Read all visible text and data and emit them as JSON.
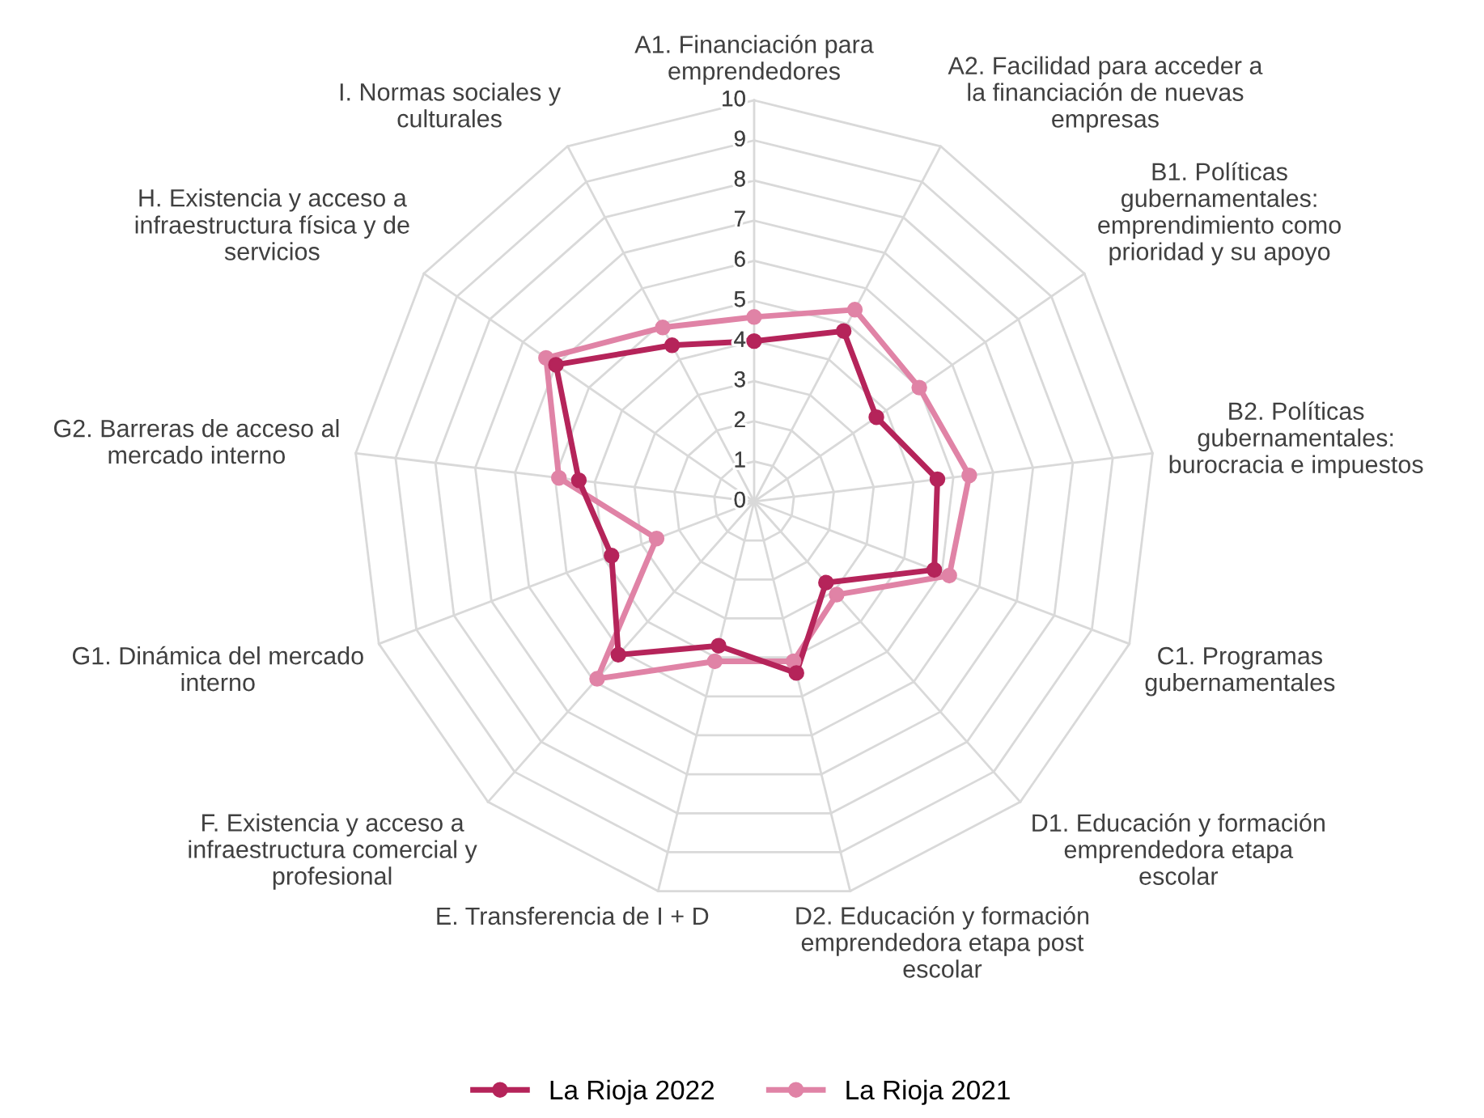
{
  "chart_data": {
    "type": "radar",
    "categories": [
      "A1. Financiación para\nemprendedores",
      "A2. Facilidad para acceder a\nla financiación de nuevas\nempresas",
      "B1. Políticas\ngubernamentales:\nemprendimiento como\nprioridad y su apoyo",
      "B2. Políticas\ngubernamentales:\nburocracia e impuestos",
      "C1. Programas\ngubernamentales",
      "D1. Educación y formación\nemprendedora etapa\nescolar",
      "D2. Educación y formación\nemprendedora etapa post\nescolar",
      "E. Transferencia de I + D",
      "F. Existencia y acceso a\ninfraestructura comercial y\nprofesional",
      "G1. Dinámica del mercado\ninterno",
      "G2. Barreras de acceso al\nmercado interno",
      "H. Existencia y acceso a\ninfraestructura física y de\nservicios",
      "I. Normas sociales y\nculturales"
    ],
    "series": [
      {
        "name": "La Rioja 2022",
        "color": "#b5245a",
        "values": [
          4.0,
          4.8,
          3.7,
          4.6,
          4.8,
          2.7,
          4.4,
          3.7,
          5.1,
          3.8,
          4.4,
          6.0,
          4.4
        ]
      },
      {
        "name": "La Rioja 2021",
        "color": "#e083a6",
        "values": [
          4.6,
          5.4,
          5.0,
          5.4,
          5.2,
          3.1,
          4.1,
          4.1,
          5.9,
          2.6,
          4.9,
          6.3,
          4.9
        ]
      }
    ],
    "ylim": [
      0,
      10
    ],
    "yticks": [
      0,
      1,
      2,
      3,
      4,
      5,
      6,
      7,
      8,
      9,
      10
    ],
    "grid": true,
    "legend": "bottom",
    "marker": "circle",
    "line_style": "solid"
  }
}
